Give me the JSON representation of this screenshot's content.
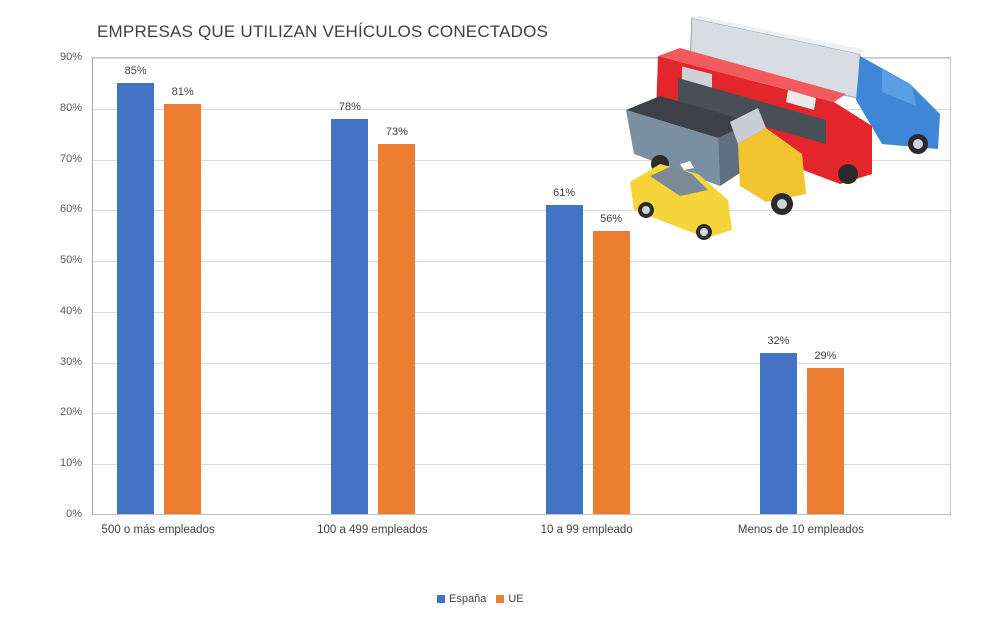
{
  "chart_data": {
    "type": "bar",
    "title": "EMPRESAS QUE UTILIZAN VEHÍCULOS CONECTADOS",
    "categories": [
      "500 o más empleados",
      "100 a 499 empleados",
      "10 a 99 empleado",
      "Menos de 10 empleados"
    ],
    "series": [
      {
        "name": "España",
        "color": "#4472C4",
        "values": [
          85,
          78,
          61,
          32
        ],
        "labels": [
          "85%",
          "78%",
          "61%",
          "32%"
        ]
      },
      {
        "name": "UE",
        "color": "#ED7D31",
        "values": [
          81,
          73,
          56,
          29
        ],
        "labels": [
          "81%",
          "73%",
          "56%",
          "29%"
        ]
      }
    ],
    "xlabel": "",
    "ylabel": "",
    "ylim": [
      0,
      90
    ],
    "yticks": [
      "0%",
      "10%",
      "20%",
      "30%",
      "40%",
      "50%",
      "60%",
      "70%",
      "80%",
      "90%"
    ],
    "grid": true,
    "legend_position": "bottom",
    "decoration": "vehicles-illustration"
  }
}
